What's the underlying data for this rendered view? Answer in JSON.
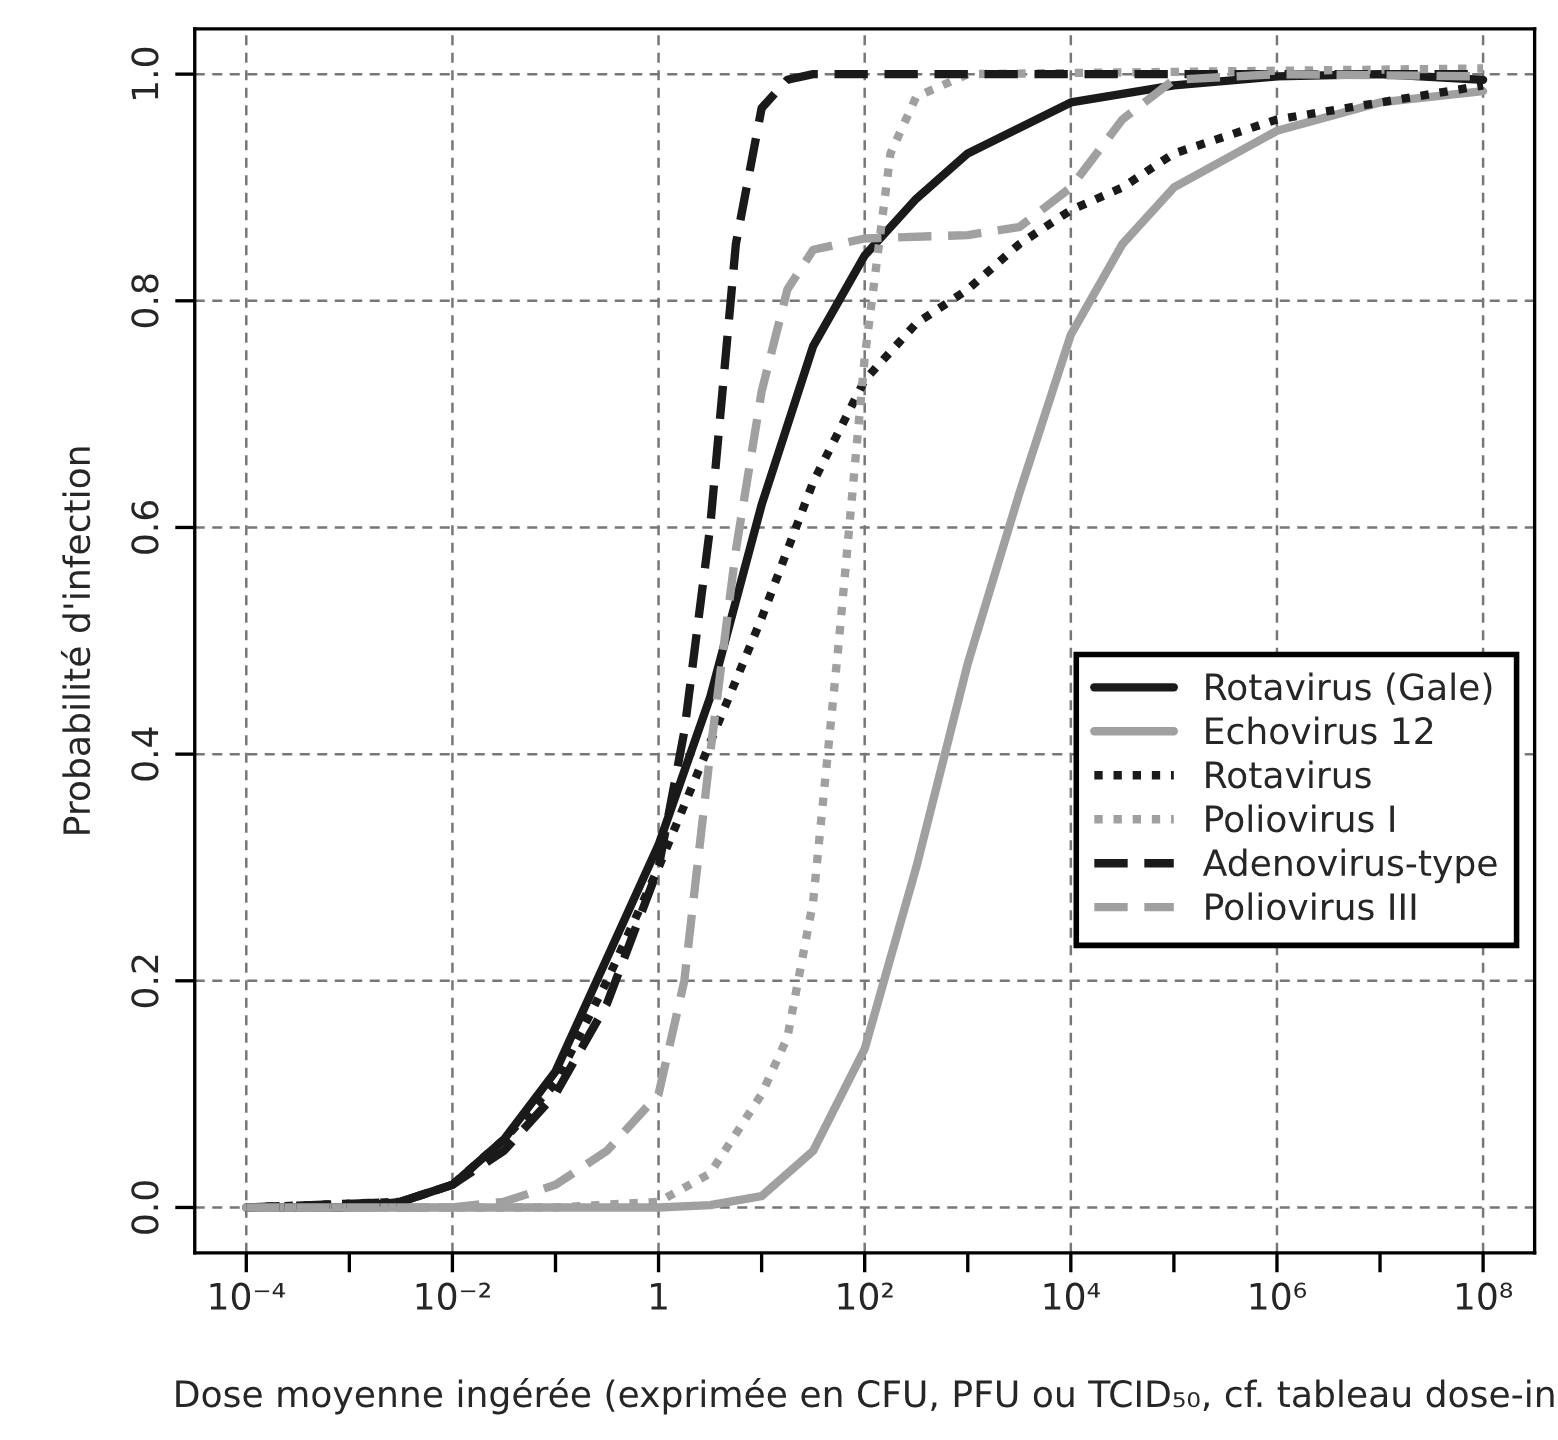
{
  "chart_data": {
    "type": "line",
    "xlabel": "Dose moyenne ingérée (exprimée en CFU, PFU ou TCID₅₀, cf. tableau dose-in",
    "ylabel": "Probabilité d'infection",
    "log": "x",
    "grid": true,
    "legend": "right",
    "tick_labels": true,
    "xlim": [
      3.162e-05,
      316200000.0
    ],
    "ylim": [
      -0.04,
      1.04
    ],
    "xticks": [
      {
        "value": 0.0001,
        "label": "10⁻⁴"
      },
      {
        "value": 0.001,
        "label": null
      },
      {
        "value": 0.01,
        "label": "10⁻²"
      },
      {
        "value": 0.1,
        "label": null
      },
      {
        "value": 1,
        "label": "1"
      },
      {
        "value": 10,
        "label": null
      },
      {
        "value": 100,
        "label": "10²"
      },
      {
        "value": 1000,
        "label": null
      },
      {
        "value": 10000,
        "label": "10⁴"
      },
      {
        "value": 100000,
        "label": null
      },
      {
        "value": 1000000,
        "label": "10⁶"
      },
      {
        "value": 10000000,
        "label": null
      },
      {
        "value": 100000000,
        "label": "10⁸"
      }
    ],
    "yticks": [
      {
        "value": 0,
        "label": "0.0"
      },
      {
        "value": 0.2,
        "label": "0.2"
      },
      {
        "value": 0.4,
        "label": "0.4"
      },
      {
        "value": 0.6,
        "label": "0.6"
      },
      {
        "value": 0.8,
        "label": "0.8"
      },
      {
        "value": 1,
        "label": "1.0"
      }
    ],
    "series": [
      {
        "name": "Rotavirus (Gale)",
        "color": "#1a1a1a",
        "line_style": "solid",
        "x": [
          0.0001,
          0.001,
          0.003162,
          0.01,
          0.03162,
          0.1,
          0.3162,
          1,
          3.162,
          10,
          31.62,
          100,
          316.2,
          1000,
          10000,
          100000,
          1000000,
          10000000,
          100000000
        ],
        "values": [
          0,
          0,
          0.005,
          0.02,
          0.06,
          0.12,
          0.22,
          0.32,
          0.45,
          0.62,
          0.76,
          0.84,
          0.89,
          0.93,
          0.975,
          0.99,
          0.998,
          1.0,
          0.995
        ]
      },
      {
        "name": "Echovirus 12",
        "color": "#a0a0a0",
        "line_style": "solid",
        "x": [
          0.0001,
          1,
          3.162,
          10,
          31.62,
          100,
          316.2,
          1000,
          3162,
          10000,
          31620,
          100000,
          1000000,
          10000000,
          100000000
        ],
        "values": [
          0,
          0,
          0.002,
          0.01,
          0.05,
          0.14,
          0.3,
          0.48,
          0.63,
          0.77,
          0.85,
          0.9,
          0.95,
          0.975,
          0.985
        ]
      },
      {
        "name": "Rotavirus",
        "color": "#1a1a1a",
        "line_style": "dotted",
        "x": [
          0.0001,
          0.003162,
          0.01,
          0.03162,
          0.1,
          0.3162,
          1,
          3.162,
          10,
          31.62,
          100,
          316.2,
          1000,
          3162,
          10000,
          31620,
          100000,
          1000000,
          10000000,
          100000000
        ],
        "values": [
          0,
          0.005,
          0.02,
          0.06,
          0.11,
          0.2,
          0.3,
          0.41,
          0.52,
          0.64,
          0.73,
          0.78,
          0.81,
          0.85,
          0.88,
          0.9,
          0.93,
          0.96,
          0.975,
          0.99
        ]
      },
      {
        "name": "Poliovirus I",
        "color": "#a0a0a0",
        "line_style": "dotted",
        "x": [
          0.0001,
          0.1,
          1,
          3.162,
          10,
          17.78,
          31.62,
          56.23,
          100,
          177.8,
          316.2,
          1000,
          100000000
        ],
        "values": [
          0,
          0,
          0.005,
          0.03,
          0.1,
          0.15,
          0.27,
          0.5,
          0.75,
          0.93,
          0.98,
          1.0,
          1.005
        ]
      },
      {
        "name": "Adenovirus-type",
        "color": "#1a1a1a",
        "line_style": "dashed",
        "x": [
          0.0001,
          0.003162,
          0.01,
          0.03162,
          0.1,
          0.3162,
          1,
          1.778,
          3.162,
          5.623,
          10,
          17.78,
          31.62,
          100000000
        ],
        "values": [
          0,
          0.005,
          0.02,
          0.05,
          0.1,
          0.18,
          0.3,
          0.42,
          0.6,
          0.85,
          0.97,
          0.995,
          1.0,
          1.0
        ]
      },
      {
        "name": "Poliovirus III",
        "color": "#a0a0a0",
        "line_style": "dashed",
        "x": [
          0.0001,
          0.01,
          0.03162,
          0.1,
          0.3162,
          1,
          1.778,
          3.162,
          5.623,
          10,
          17.78,
          31.62,
          100,
          1000,
          3162,
          10000,
          31620,
          100000,
          1000000,
          100000000
        ],
        "values": [
          0,
          0,
          0.005,
          0.02,
          0.05,
          0.1,
          0.2,
          0.4,
          0.58,
          0.72,
          0.81,
          0.845,
          0.855,
          0.858,
          0.865,
          0.9,
          0.96,
          0.995,
          1.0,
          0.998
        ]
      }
    ]
  }
}
